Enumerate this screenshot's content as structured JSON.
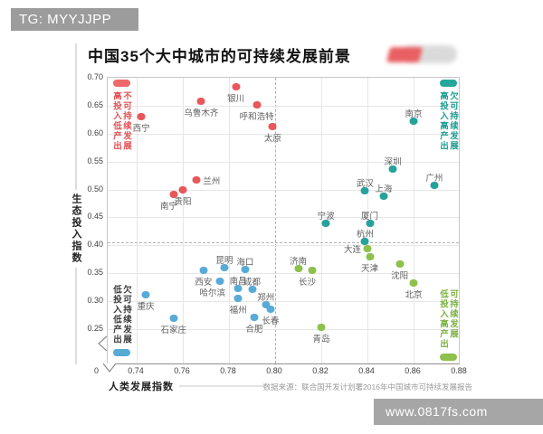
{
  "badge_top": "TG: MYYJJPP",
  "watermark_bottom": "www.0817fs.com",
  "source": "数据来源：联合国开发计划署2016年中国城市可持续发展报告",
  "colors": {
    "red": "#e8575a",
    "blue": "#58abd7",
    "teal": "#26a29b",
    "green": "#8ec04c",
    "quad_red_text": "#e05356",
    "quad_teal_text": "#1f9e92",
    "quad_green_text": "#7cb342",
    "quad_dark_text": "#3c3c3c",
    "badge_gray": "#9c9c9c",
    "watermark_gray": "#a6a6a6"
  },
  "quadrants": [
    {
      "id": "top-left",
      "lines": [
        "不可持续发展",
        "高投入低产出"
      ],
      "text_color": "#e05356",
      "pill_color": "#ef686b",
      "pill": "above"
    },
    {
      "id": "top-right",
      "lines": [
        "欠可持续发展",
        "高投入高产出"
      ],
      "text_color": "#1f9e92",
      "pill_color": "#26a69a",
      "pill": "above"
    },
    {
      "id": "bottom-left",
      "lines": [
        "欠可持续发展",
        "低投入低产出"
      ],
      "text_color": "#3c3c3c",
      "pill_color": "#56aad6",
      "pill": "below"
    },
    {
      "id": "bottom-right",
      "lines": [
        "可持续发展",
        "低投入高产出"
      ],
      "text_color": "#7cb342",
      "pill_color": "#8ec04c",
      "pill": "below"
    }
  ],
  "chart_data": {
    "type": "scatter",
    "title": "中国35个大中城市的可持续发展前景",
    "xlabel": "人类发展指数",
    "ylabel": "生态投入指数",
    "xlim": [
      0.74,
      0.88
    ],
    "ylim": [
      0.25,
      0.7
    ],
    "x_ticks": [
      0.74,
      0.76,
      0.78,
      0.8,
      0.82,
      0.84,
      0.86,
      0.88
    ],
    "y_ticks": [
      0.25,
      0.3,
      0.35,
      0.4,
      0.45,
      0.5,
      0.55,
      0.6,
      0.65,
      0.7
    ],
    "origin_label": "0",
    "axis_breaks": true,
    "grid": true,
    "threshold_x_dashed": 0.8,
    "threshold_y_dashed": 0.405,
    "series": [
      {
        "name": "不可持续发展（高投入低产出）",
        "color": "#e8575a",
        "points": [
          {
            "city": "西宁",
            "x": 0.742,
            "y": 0.63,
            "label_pos": "below"
          },
          {
            "city": "银川",
            "x": 0.783,
            "y": 0.684,
            "label_pos": "below"
          },
          {
            "city": "乌鲁木齐",
            "x": 0.768,
            "y": 0.658,
            "label_pos": "below"
          },
          {
            "city": "呼和浩特",
            "x": 0.792,
            "y": 0.652,
            "label_pos": "below"
          },
          {
            "city": "太原",
            "x": 0.799,
            "y": 0.613,
            "label_pos": "below"
          },
          {
            "city": "兰州",
            "x": 0.766,
            "y": 0.517,
            "label_pos": "right"
          },
          {
            "city": "贵阳",
            "x": 0.76,
            "y": 0.5,
            "label_pos": "below"
          },
          {
            "city": "南宁",
            "x": 0.756,
            "y": 0.492,
            "label_pos": "below-left"
          }
        ]
      },
      {
        "name": "欠可持续发展（高投入高产出）",
        "color": "#26a29b",
        "points": [
          {
            "city": "南京",
            "x": 0.86,
            "y": 0.622,
            "label_pos": "above"
          },
          {
            "city": "深圳",
            "x": 0.851,
            "y": 0.537,
            "label_pos": "above"
          },
          {
            "city": "广州",
            "x": 0.869,
            "y": 0.507,
            "label_pos": "above"
          },
          {
            "city": "武汉",
            "x": 0.839,
            "y": 0.498,
            "label_pos": "above"
          },
          {
            "city": "上海",
            "x": 0.847,
            "y": 0.488,
            "label_pos": "above"
          },
          {
            "city": "宁波",
            "x": 0.822,
            "y": 0.44,
            "label_pos": "above"
          },
          {
            "city": "厦门",
            "x": 0.841,
            "y": 0.44,
            "label_pos": "above"
          },
          {
            "city": "杭州",
            "x": 0.839,
            "y": 0.407,
            "label_pos": "above"
          }
        ]
      },
      {
        "name": "可持续发展（低投入高产出）",
        "color": "#8ec04c",
        "points": [
          {
            "city": "大连",
            "x": 0.84,
            "y": 0.394,
            "label_pos": "left"
          },
          {
            "city": "天津",
            "x": 0.841,
            "y": 0.379,
            "label_pos": "below"
          },
          {
            "city": "沈阳",
            "x": 0.854,
            "y": 0.367,
            "label_pos": "below"
          },
          {
            "city": "济南",
            "x": 0.81,
            "y": 0.359,
            "label_pos": "above"
          },
          {
            "city": "长沙",
            "x": 0.816,
            "y": 0.355,
            "label_pos": "below-left"
          },
          {
            "city": "北京",
            "x": 0.86,
            "y": 0.333,
            "label_pos": "below"
          },
          {
            "city": "青岛",
            "x": 0.82,
            "y": 0.253,
            "label_pos": "below"
          }
        ]
      },
      {
        "name": "欠可持续发展（低投入低产出）",
        "color": "#58abd7",
        "points": [
          {
            "city": "昆明",
            "x": 0.778,
            "y": 0.36,
            "label_pos": "above"
          },
          {
            "city": "海口",
            "x": 0.787,
            "y": 0.357,
            "label_pos": "above"
          },
          {
            "city": "西安",
            "x": 0.769,
            "y": 0.355,
            "label_pos": "below"
          },
          {
            "city": "哈尔滨",
            "x": 0.776,
            "y": 0.336,
            "label_pos": "below-left"
          },
          {
            "city": "南昌",
            "x": 0.784,
            "y": 0.323,
            "label_pos": "above"
          },
          {
            "city": "成都",
            "x": 0.79,
            "y": 0.321,
            "label_pos": "above"
          },
          {
            "city": "福州",
            "x": 0.784,
            "y": 0.305,
            "label_pos": "below"
          },
          {
            "city": "郑州",
            "x": 0.796,
            "y": 0.294,
            "label_pos": "above"
          },
          {
            "city": "长春",
            "x": 0.798,
            "y": 0.286,
            "label_pos": "below"
          },
          {
            "city": "合肥",
            "x": 0.791,
            "y": 0.271,
            "label_pos": "below"
          },
          {
            "city": "重庆",
            "x": 0.744,
            "y": 0.312,
            "label_pos": "below"
          },
          {
            "city": "石家庄",
            "x": 0.756,
            "y": 0.27,
            "label_pos": "below"
          }
        ]
      }
    ]
  }
}
